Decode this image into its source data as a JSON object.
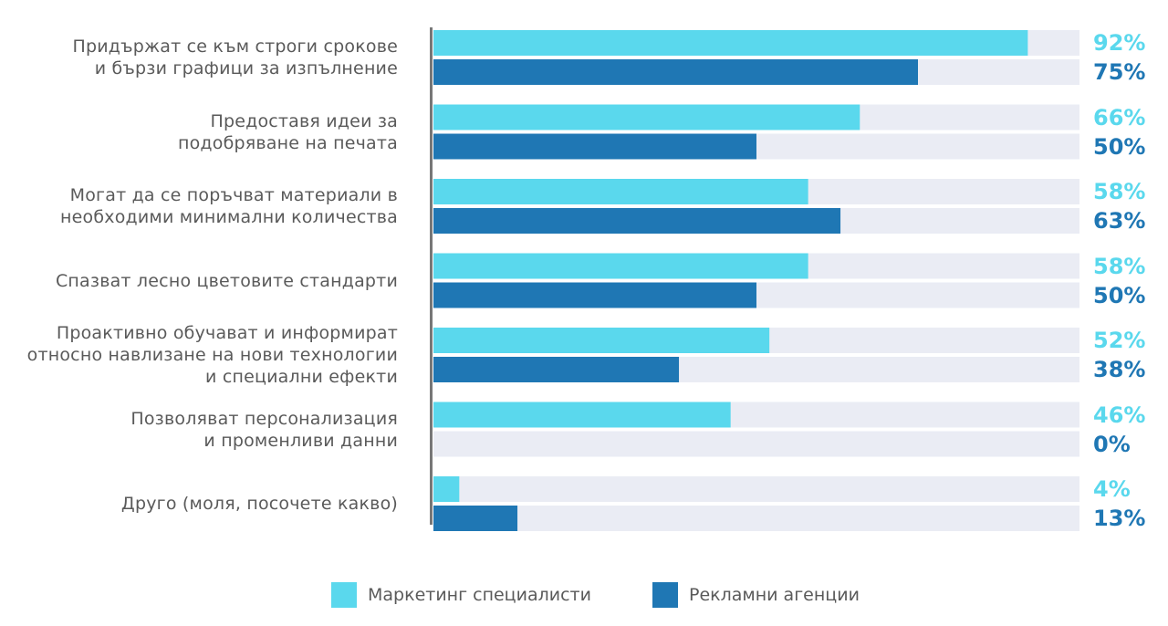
{
  "chart_data": {
    "type": "bar",
    "orientation": "horizontal",
    "categories": [
      "Придържат се към строги срокове\nи бързи графици за изпълнение",
      "Предоставя идеи за\nподобряване на печата",
      "Могат да се поръчват материали в\nнеобходими минимални количества",
      "Спазват лесно цветовите стандарти",
      "Проактивно обучават и информират\nотносно навлизане на нови технологии\nи специални ефекти",
      "Позволяват персонализация\nи променливи данни",
      "Друго (моля, посочете какво)"
    ],
    "series": [
      {
        "name": "Маркетинг специалисти",
        "color": "#5ad8ed",
        "values": [
          92,
          66,
          58,
          58,
          52,
          46,
          4
        ],
        "labels": [
          "92%",
          "66%",
          "58%",
          "58%",
          "52%",
          "46%",
          "4%"
        ]
      },
      {
        "name": "Рекламни агенции",
        "color": "#1f77b4",
        "values": [
          75,
          50,
          63,
          50,
          38,
          0,
          13
        ],
        "labels": [
          "75%",
          "50%",
          "63%",
          "50%",
          "38%",
          "0%",
          "13%"
        ]
      }
    ],
    "xlim": [
      0,
      100
    ],
    "track_color": "#eaecf4",
    "axis_color": "#777777",
    "title": "",
    "xlabel": "",
    "ylabel": "",
    "legend_position": "bottom-center"
  }
}
